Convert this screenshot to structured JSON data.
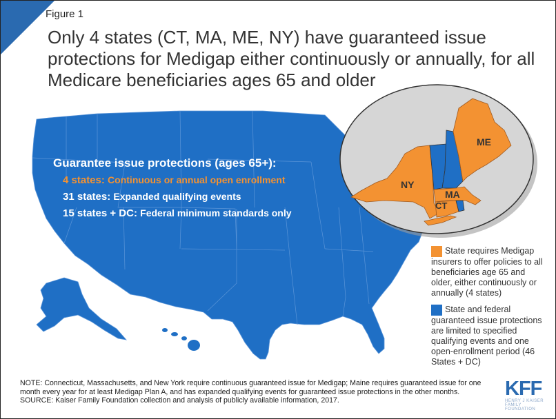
{
  "figure_label": "Figure 1",
  "title": "Only 4 states (CT, MA, ME, NY) have guaranteed issue protections for Medigap either continuously or annually, for all Medicare beneficiaries ages 65 and older",
  "map_overlay": {
    "heading": "Guarantee issue protections (ages 65+):",
    "rows": [
      {
        "count": "4 states:",
        "text": "Continuous or annual open enrollment"
      },
      {
        "count": "31 states:",
        "text": "Expanded qualifying events"
      },
      {
        "count": "15 states + DC:",
        "text": "Federal minimum standards only"
      }
    ]
  },
  "inset_labels": {
    "ny": "NY",
    "ma": "MA",
    "ct": "CT",
    "me": "ME"
  },
  "legend": [
    {
      "text": "State requires Medigap insurers to offer policies to all beneficiaries age 65 and older, either continuously or annually (4 states)",
      "color": "#f39232"
    },
    {
      "text": "State and federal guaranteed issue protections are limited to specified qualifying events and one open-enrollment period (46 States + DC)",
      "color": "#1f6fc5"
    }
  ],
  "note": "NOTE: Connecticut, Massachusetts, and New York require continuous guaranteed issue for Medigap; Maine requires guaranteed issue for one month every year for at least Medigap Plan A, and has expanded qualifying events for guaranteed issue protections in the other months.",
  "source": "SOURCE: Kaiser Family Foundation collection and analysis of publicly available information, 2017.",
  "logo": {
    "mark": "KFF",
    "sub": "HENRY J KAISER FAMILY FOUNDATION"
  },
  "colors": {
    "state_blue": "#1f6fc5",
    "highlight_orange": "#f39232",
    "corner_blue": "#2a6ab0"
  }
}
